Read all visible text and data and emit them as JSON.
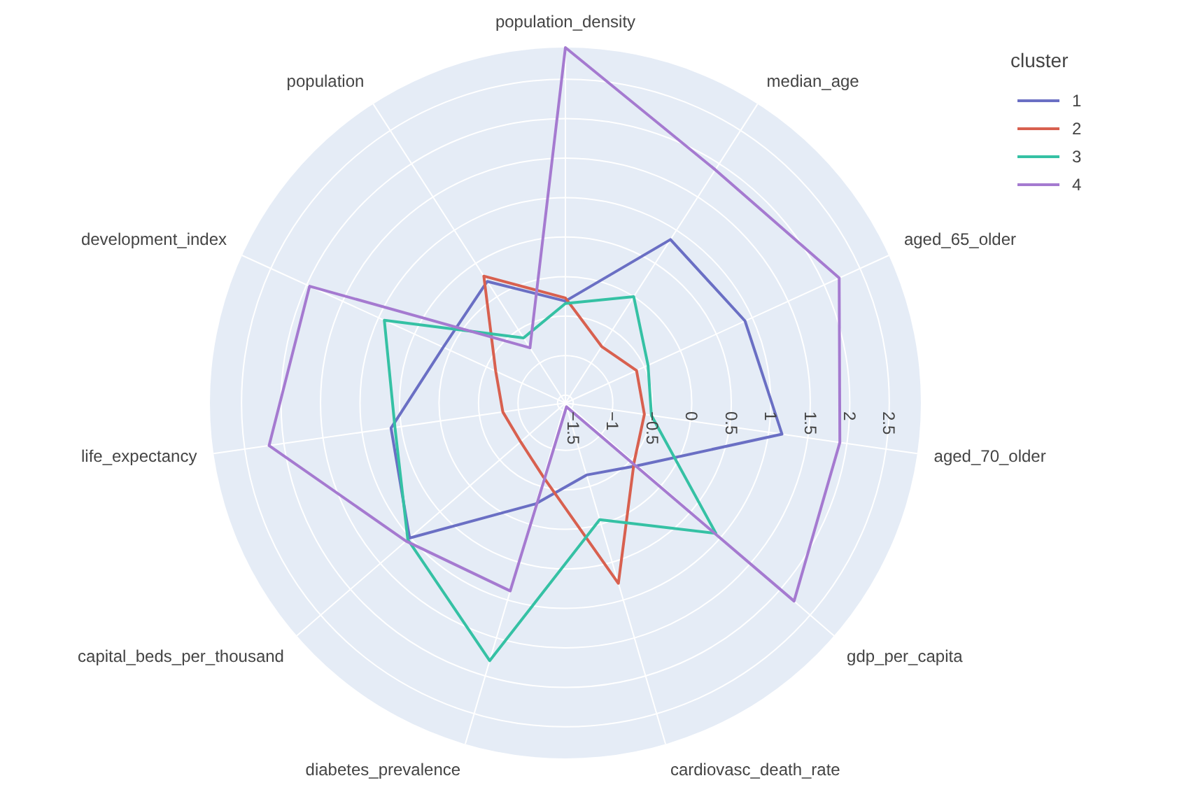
{
  "chart_data": {
    "type": "radar",
    "categories": [
      "population_density",
      "median_age",
      "aged_65_older",
      "aged_70_older",
      "gdp_per_capita",
      "cardiovasc_death_rate",
      "diabetes_prevalence",
      "capital_beds_per_thousand",
      "life_expectancy",
      "development_index",
      "population"
    ],
    "series": [
      {
        "name": "1",
        "color": "#6a6fc4",
        "values": [
          -0.31,
          0.86,
          0.9,
          1.17,
          -0.39,
          -0.65,
          -0.27,
          1.01,
          0.63,
          0.1,
          0.23
        ]
      },
      {
        "name": "2",
        "color": "#d8604f",
        "values": [
          -0.27,
          -0.75,
          -0.61,
          -0.59,
          -0.45,
          0.78,
          -0.62,
          -0.85,
          -0.8,
          -0.63,
          0.31
        ]
      },
      {
        "name": "3",
        "color": "#35c1a4",
        "values": [
          -0.34,
          0,
          -0.45,
          -0.5,
          0.92,
          -0.06,
          1.8,
          1.04,
          0.58,
          0.92,
          -0.62
        ]
      },
      {
        "name": "4",
        "color": "#a57ad0",
        "values": [
          2.9,
          1.91,
          2.21,
          1.91,
          2.23,
          -1.55,
          0.88,
          1.07,
          2.19,
          1.96,
          -0.77
        ]
      }
    ],
    "ylim": [
      -1.6,
      2.9
    ],
    "yticks": [
      -1.5,
      -1,
      -0.5,
      0,
      0.5,
      1,
      1.5,
      2,
      2.5
    ],
    "grid": true,
    "legend": "top right",
    "legend_title": "cluster"
  }
}
